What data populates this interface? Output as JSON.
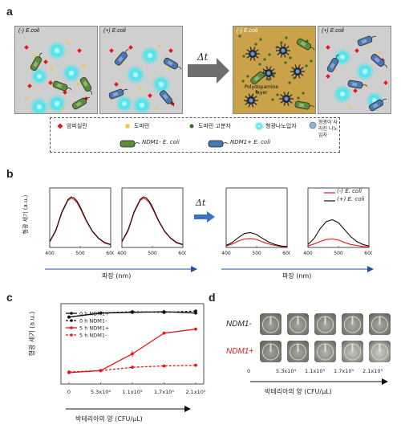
{
  "panels": {
    "a": "a",
    "b": "b",
    "c": "c",
    "d": "d"
  },
  "panel_a": {
    "scenes": [
      "(-) E.coli",
      "(+) E.coli",
      "(-) E.coli",
      "(+) E.coli"
    ],
    "delta_t": "Δt",
    "polydopamine": "Polydopamine layer",
    "legend": {
      "ampicillin": "암피실린",
      "dopamine": "도파민",
      "dopamine_polymer": "도파민 고분자",
      "fluorescent_np": "형광나노입자",
      "quenched_np": "형광이 사라진 나노입자",
      "ndm1_neg": "NDM1",
      "ndm1_neg_suffix": "- E. coli",
      "ndm1_pos": "NDM1",
      "ndm1_pos_suffix": "+ E. coli"
    },
    "colors": {
      "ampicillin": "#e8141c",
      "dopamine": "#f5c542",
      "dopamine_polymer": "#3a6b2a",
      "glow": "#3fe6f0",
      "bg_after": "#c9a24a"
    }
  },
  "panel_b": {
    "ylabel": "형광 세기 (a.u.)",
    "xlabel_left": "파장 (nm)",
    "xlabel_right": "파장 (nm)",
    "delta_t": "Δt",
    "xticks": [
      "400",
      "500",
      "600"
    ],
    "legend": [
      "(-) E. coli",
      "(+) E. coli"
    ],
    "colors": {
      "neg": "#e8141c",
      "pos": "#111111",
      "arrow": "#3b73c4"
    }
  },
  "chart_data": [
    {
      "type": "line",
      "title": "",
      "xlabel": "파장 (nm)",
      "ylabel": "형광 세기 (a.u.)",
      "xlim": [
        400,
        600
      ],
      "ylim": [
        0,
        1.2
      ],
      "x": [
        400,
        420,
        440,
        460,
        470,
        480,
        490,
        500,
        520,
        540,
        560,
        580,
        600
      ],
      "series": [
        {
          "name": "",
          "color": "#111111",
          "values": [
            0.12,
            0.35,
            0.72,
            0.97,
            1.02,
            1.0,
            0.93,
            0.82,
            0.55,
            0.33,
            0.19,
            0.1,
            0.06
          ]
        },
        {
          "name": "",
          "color": "#e8141c",
          "values": [
            0.11,
            0.33,
            0.7,
            0.95,
            0.99,
            0.97,
            0.9,
            0.79,
            0.53,
            0.32,
            0.18,
            0.09,
            0.05
          ]
        }
      ]
    },
    {
      "type": "line",
      "title": "",
      "xlabel": "",
      "ylabel": "",
      "xlim": [
        400,
        600
      ],
      "ylim": [
        0,
        1.2
      ],
      "x": [
        400,
        420,
        440,
        460,
        470,
        480,
        490,
        500,
        520,
        540,
        560,
        580,
        600
      ],
      "series": [
        {
          "name": "",
          "color": "#111111",
          "values": [
            0.12,
            0.35,
            0.72,
            0.97,
            1.02,
            1.0,
            0.93,
            0.82,
            0.55,
            0.33,
            0.19,
            0.1,
            0.06
          ]
        },
        {
          "name": "",
          "color": "#e8141c",
          "values": [
            0.11,
            0.33,
            0.7,
            0.95,
            0.99,
            0.97,
            0.9,
            0.79,
            0.53,
            0.32,
            0.18,
            0.09,
            0.05
          ]
        }
      ]
    },
    {
      "type": "line",
      "title": "",
      "xlabel": "파장 (nm)",
      "ylabel": "",
      "xlim": [
        400,
        600
      ],
      "ylim": [
        0,
        1.2
      ],
      "x": [
        400,
        420,
        440,
        460,
        480,
        500,
        520,
        540,
        560,
        580,
        600
      ],
      "series": [
        {
          "name": "(+) E. coli",
          "color": "#111111",
          "values": [
            0.04,
            0.1,
            0.2,
            0.28,
            0.3,
            0.26,
            0.18,
            0.11,
            0.06,
            0.03,
            0.02
          ]
        },
        {
          "name": "(-) E. coli",
          "color": "#e8141c",
          "values": [
            0.03,
            0.07,
            0.13,
            0.17,
            0.18,
            0.16,
            0.11,
            0.07,
            0.04,
            0.02,
            0.01
          ]
        }
      ]
    },
    {
      "type": "line",
      "title": "",
      "xlabel": "",
      "ylabel": "",
      "xlim": [
        400,
        600
      ],
      "ylim": [
        0,
        1.2
      ],
      "x": [
        400,
        420,
        440,
        460,
        480,
        500,
        520,
        540,
        560,
        580,
        600
      ],
      "series": [
        {
          "name": "(+) E. coli",
          "color": "#111111",
          "values": [
            0.06,
            0.18,
            0.38,
            0.52,
            0.56,
            0.5,
            0.36,
            0.22,
            0.12,
            0.06,
            0.03
          ]
        },
        {
          "name": "(-) E. coli",
          "color": "#e8141c",
          "values": [
            0.03,
            0.07,
            0.12,
            0.16,
            0.17,
            0.15,
            0.1,
            0.06,
            0.04,
            0.02,
            0.01
          ]
        }
      ]
    },
    {
      "type": "line",
      "title": "",
      "xlabel": "박테리아의 양 (CFU/μL)",
      "ylabel": "형광 세기 (a.u.)",
      "categories": [
        "0",
        "5.3x10⁴",
        "1.1x10⁵",
        "1.7x10⁵",
        "2.1x10⁵"
      ],
      "ylim": [
        0,
        1.2
      ],
      "series": [
        {
          "name": "0 h NDM1+",
          "color": "#111111",
          "dashed": false,
          "values": [
            1.0,
            1.06,
            1.07,
            1.08,
            1.06
          ]
        },
        {
          "name": "0 h NDM1-",
          "color": "#111111",
          "dashed": true,
          "values": [
            1.0,
            1.06,
            1.08,
            1.07,
            1.09
          ]
        },
        {
          "name": "5 h NDM1+",
          "color": "#e8141c",
          "dashed": false,
          "values": [
            0.17,
            0.2,
            0.45,
            0.76,
            0.82
          ]
        },
        {
          "name": "5 h NDM1-",
          "color": "#e8141c",
          "dashed": true,
          "values": [
            0.18,
            0.2,
            0.25,
            0.27,
            0.28
          ]
        }
      ]
    }
  ],
  "panel_c": {
    "ylabel": "형광 세기 (a.u.)",
    "xlabel": "박테리아의 양 (CFU/μL)",
    "xticks": [
      "0",
      "5.3x10⁴",
      "1.1x10⁵",
      "1.7x10⁵",
      "2.1x10⁵"
    ],
    "legend": [
      "0 h NDM1+",
      "0 h NDM1-",
      "5 h NDM1+",
      "5 h NDM1-"
    ]
  },
  "panel_d": {
    "row_top": "NDM1-",
    "row_bottom": "NDM1+",
    "xticks": [
      "0",
      "5.3x10⁴",
      "1.1x10⁵",
      "1.7x10⁵",
      "2.1x10⁵"
    ],
    "xlabel": "박테리아의 양 (CFU/μL)",
    "row_bottom_color": "#e8141c",
    "photo_levels_top": [
      0.55,
      0.6,
      0.62,
      0.62,
      0.6
    ],
    "photo_levels_bottom": [
      0.55,
      0.6,
      0.7,
      0.82,
      0.88
    ]
  }
}
